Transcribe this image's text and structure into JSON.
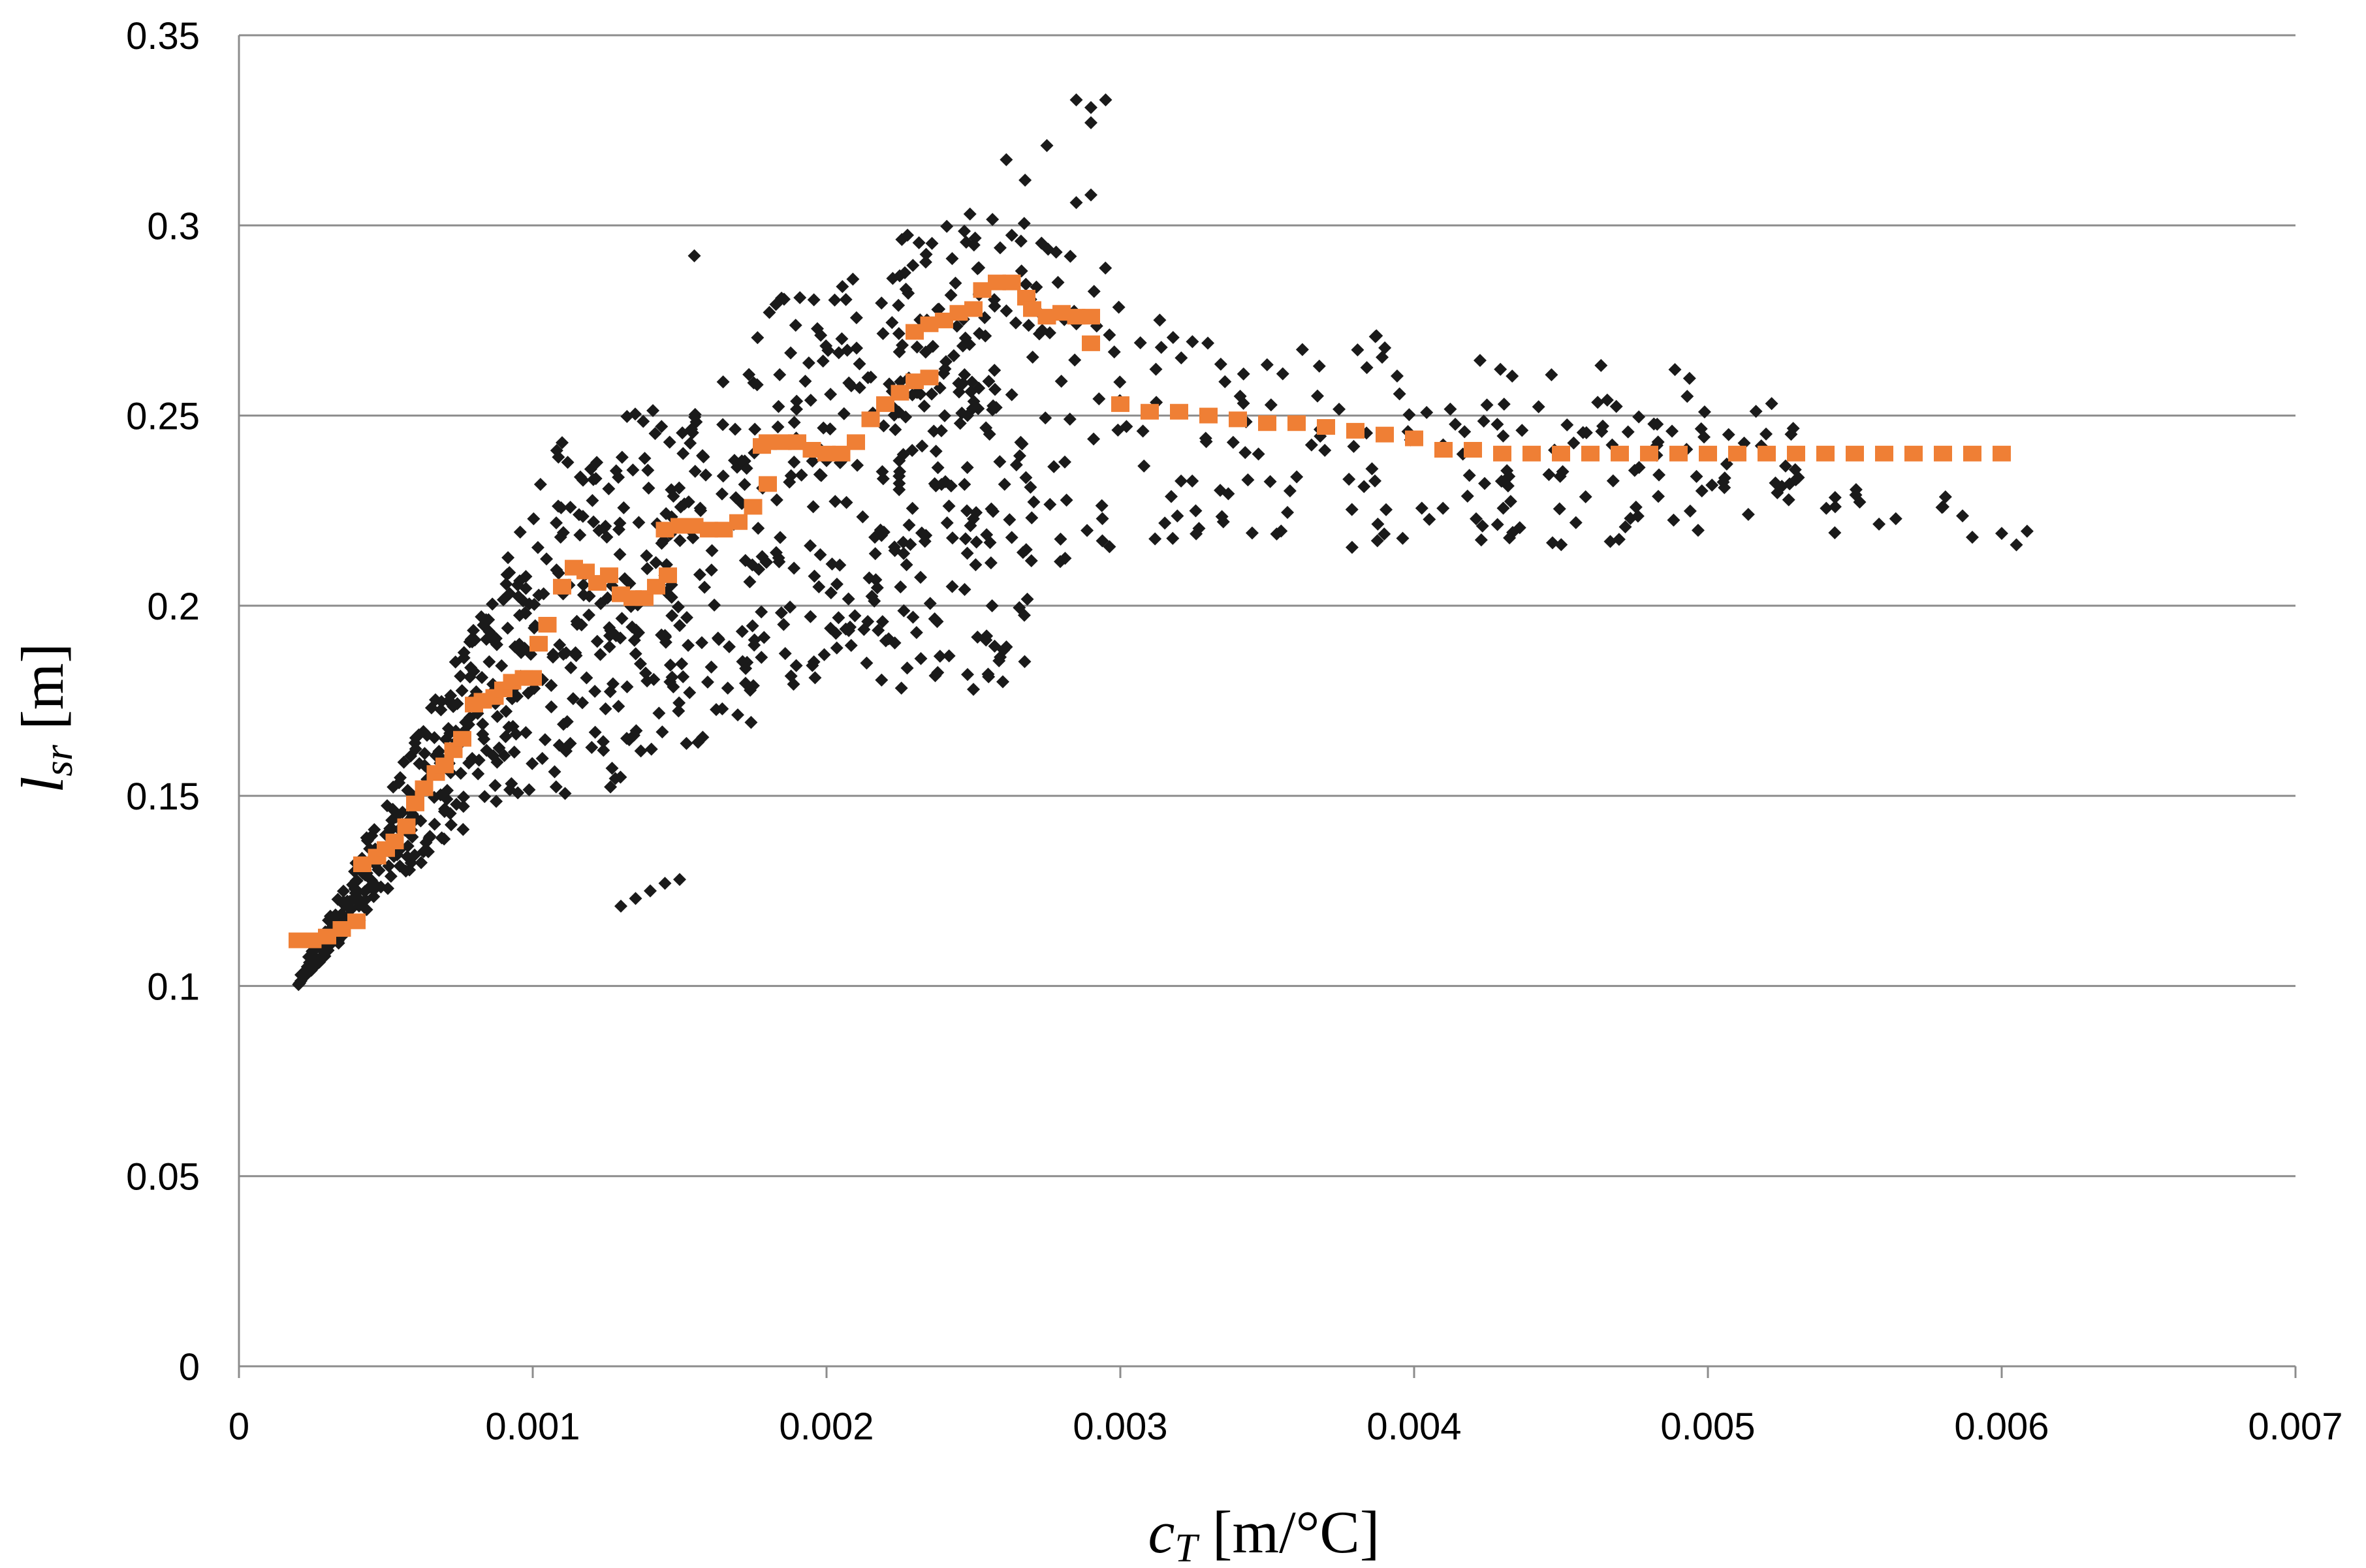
{
  "chart_data": {
    "type": "scatter",
    "xlabel": {
      "main": "c",
      "sub": "T",
      "unit": " [m/°C]"
    },
    "ylabel": {
      "main": "l",
      "sub": "sr",
      "unit": " [m]"
    },
    "xlim": [
      0,
      0.007
    ],
    "ylim": [
      0,
      0.35
    ],
    "x_ticks": [
      "0",
      "0.001",
      "0.002",
      "0.003",
      "0.004",
      "0.005",
      "0.006",
      "0.007"
    ],
    "y_ticks": [
      "0",
      "0.05",
      "0.1",
      "0.15",
      "0.2",
      "0.25",
      "0.3",
      "0.35"
    ],
    "grid": "horizontal",
    "legend": "none",
    "colors": {
      "scatter": "#1a1a1a",
      "step": "#ef7f35",
      "grid": "#8c8c8c",
      "axis": "#8c8c8c"
    },
    "series": [
      {
        "kind": "scatter-cloud",
        "marker": "diamond",
        "clusters": [
          {
            "band": [
              [
                0.0002,
                0.1,
                0.102
              ],
              [
                0.00035,
                0.112,
                0.125
              ],
              [
                0.0005,
                0.125,
                0.15
              ],
              [
                0.0007,
                0.135,
                0.18
              ],
              [
                0.0009,
                0.15,
                0.21
              ],
              [
                0.0011,
                0.15,
                0.245
              ],
              [
                0.0013,
                0.15,
                0.235
              ]
            ],
            "count": 420
          },
          {
            "band": [
              [
                0.0013,
                0.16,
                0.25
              ],
              [
                0.0015,
                0.16,
                0.255
              ],
              [
                0.0017,
                0.165,
                0.27
              ],
              [
                0.0019,
                0.18,
                0.285
              ],
              [
                0.0021,
                0.18,
                0.29
              ],
              [
                0.0023,
                0.175,
                0.3
              ],
              [
                0.0025,
                0.18,
                0.315
              ],
              [
                0.0027,
                0.18,
                0.33
              ]
            ],
            "count": 420
          },
          {
            "band": [
              [
                0.0022,
                0.19,
                0.26
              ],
              [
                0.0024,
                0.19,
                0.275
              ],
              [
                0.0026,
                0.205,
                0.29
              ],
              [
                0.0028,
                0.205,
                0.3
              ],
              [
                0.003,
                0.215,
                0.285
              ]
            ],
            "count": 90
          },
          {
            "band": [
              [
                0.003,
                0.215,
                0.285
              ],
              [
                0.0035,
                0.215,
                0.275
              ],
              [
                0.004,
                0.215,
                0.27
              ],
              [
                0.0045,
                0.215,
                0.265
              ],
              [
                0.005,
                0.22,
                0.262
              ],
              [
                0.0053,
                0.22,
                0.255
              ]
            ],
            "count": 190
          },
          {
            "band": [
              [
                0.0053,
                0.218,
                0.235
              ],
              [
                0.0061,
                0.215,
                0.225
              ]
            ],
            "count": 14
          }
        ],
        "points": [
          [
            0.0013,
            0.121
          ],
          [
            0.00135,
            0.123
          ],
          [
            0.0014,
            0.125
          ],
          [
            0.00145,
            0.127
          ],
          [
            0.0015,
            0.128
          ],
          [
            0.00155,
            0.292
          ],
          [
            0.00285,
            0.333
          ],
          [
            0.0029,
            0.331
          ],
          [
            0.00295,
            0.333
          ],
          [
            0.00275,
            0.321
          ],
          [
            0.0029,
            0.327
          ],
          [
            0.00285,
            0.306
          ],
          [
            0.0029,
            0.308
          ],
          [
            0.0025,
            0.178
          ],
          [
            0.0026,
            0.18
          ],
          [
            0.00255,
            0.182
          ],
          [
            0.0058,
            0.226
          ],
          [
            0.0059,
            0.218
          ],
          [
            0.006,
            0.219
          ],
          [
            0.00605,
            0.216
          ]
        ]
      },
      {
        "kind": "step",
        "marker": "square",
        "points": [
          [
            0.0002,
            0.112
          ],
          [
            0.00025,
            0.112
          ],
          [
            0.0003,
            0.113
          ],
          [
            0.00035,
            0.115
          ],
          [
            0.0004,
            0.117
          ],
          [
            0.00042,
            0.132
          ],
          [
            0.00047,
            0.134
          ],
          [
            0.0005,
            0.136
          ],
          [
            0.00053,
            0.138
          ],
          [
            0.00057,
            0.142
          ],
          [
            0.0006,
            0.148
          ],
          [
            0.00063,
            0.152
          ],
          [
            0.00067,
            0.156
          ],
          [
            0.0007,
            0.158
          ],
          [
            0.00073,
            0.162
          ],
          [
            0.00076,
            0.165
          ],
          [
            0.0008,
            0.174
          ],
          [
            0.00083,
            0.175
          ],
          [
            0.00087,
            0.176
          ],
          [
            0.0009,
            0.178
          ],
          [
            0.00093,
            0.18
          ],
          [
            0.00097,
            0.181
          ],
          [
            0.001,
            0.181
          ],
          [
            0.00102,
            0.19
          ],
          [
            0.00105,
            0.195
          ],
          [
            0.0011,
            0.205
          ],
          [
            0.00114,
            0.21
          ],
          [
            0.00118,
            0.209
          ],
          [
            0.00122,
            0.206
          ],
          [
            0.00126,
            0.208
          ],
          [
            0.0013,
            0.203
          ],
          [
            0.00134,
            0.202
          ],
          [
            0.00138,
            0.202
          ],
          [
            0.00142,
            0.205
          ],
          [
            0.00146,
            0.208
          ],
          [
            0.00145,
            0.22
          ],
          [
            0.0015,
            0.221
          ],
          [
            0.00155,
            0.221
          ],
          [
            0.0016,
            0.22
          ],
          [
            0.00165,
            0.22
          ],
          [
            0.0017,
            0.222
          ],
          [
            0.00175,
            0.226
          ],
          [
            0.0018,
            0.232
          ],
          [
            0.00178,
            0.242
          ],
          [
            0.0018,
            0.243
          ],
          [
            0.00185,
            0.243
          ],
          [
            0.0019,
            0.243
          ],
          [
            0.00195,
            0.241
          ],
          [
            0.002,
            0.24
          ],
          [
            0.00205,
            0.24
          ],
          [
            0.0021,
            0.243
          ],
          [
            0.00215,
            0.249
          ],
          [
            0.0022,
            0.253
          ],
          [
            0.00225,
            0.256
          ],
          [
            0.0023,
            0.259
          ],
          [
            0.00235,
            0.26
          ],
          [
            0.0023,
            0.272
          ],
          [
            0.00235,
            0.274
          ],
          [
            0.0024,
            0.275
          ],
          [
            0.00245,
            0.277
          ],
          [
            0.0025,
            0.278
          ],
          [
            0.00253,
            0.283
          ],
          [
            0.00258,
            0.285
          ],
          [
            0.00263,
            0.285
          ],
          [
            0.00268,
            0.281
          ],
          [
            0.0027,
            0.278
          ],
          [
            0.00275,
            0.276
          ],
          [
            0.0028,
            0.277
          ],
          [
            0.00285,
            0.276
          ],
          [
            0.0029,
            0.276
          ],
          [
            0.0029,
            0.269
          ],
          [
            0.003,
            0.253
          ],
          [
            0.0031,
            0.251
          ],
          [
            0.0032,
            0.251
          ],
          [
            0.0033,
            0.25
          ],
          [
            0.0034,
            0.249
          ],
          [
            0.0035,
            0.248
          ],
          [
            0.0036,
            0.248
          ],
          [
            0.0037,
            0.247
          ],
          [
            0.0038,
            0.246
          ],
          [
            0.0039,
            0.245
          ],
          [
            0.004,
            0.244
          ],
          [
            0.0041,
            0.241
          ],
          [
            0.0042,
            0.241
          ],
          [
            0.0043,
            0.24
          ],
          [
            0.0044,
            0.24
          ],
          [
            0.0045,
            0.24
          ],
          [
            0.0046,
            0.24
          ],
          [
            0.0047,
            0.24
          ],
          [
            0.0048,
            0.24
          ],
          [
            0.0049,
            0.24
          ],
          [
            0.005,
            0.24
          ],
          [
            0.0051,
            0.24
          ],
          [
            0.0052,
            0.24
          ],
          [
            0.0053,
            0.24
          ],
          [
            0.0054,
            0.24
          ],
          [
            0.0055,
            0.24
          ],
          [
            0.0056,
            0.24
          ],
          [
            0.0057,
            0.24
          ],
          [
            0.0058,
            0.24
          ],
          [
            0.0059,
            0.24
          ],
          [
            0.006,
            0.24
          ]
        ]
      }
    ]
  }
}
